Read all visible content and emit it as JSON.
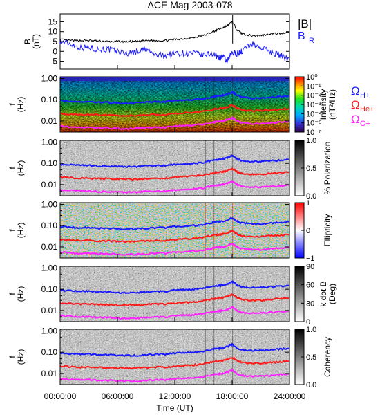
{
  "title": "ACE Mag 2003-078",
  "xlabel": "Time (UT)",
  "x_ticks": [
    "00:00:00",
    "06:00:00",
    "12:00:00",
    "18:00:00",
    "24:00:00"
  ],
  "x_tick_hours": [
    0,
    6,
    12,
    18,
    24
  ],
  "x_range_hours": [
    0,
    24
  ],
  "colors": {
    "total": "#000000",
    "radial": "#1a1aff",
    "h": "#1a1aff",
    "he": "#ff1a1a",
    "o": "#ff20ff"
  },
  "chart_data": [
    {
      "type": "line",
      "ylabel": [
        "B",
        "(nT)"
      ],
      "ylim": [
        -9,
        19
      ],
      "y_ticks": [
        "15",
        "10",
        "5",
        "0",
        "-5"
      ],
      "y_tick_values": [
        15,
        10,
        5,
        0,
        -5
      ],
      "legend": {
        "position": "right",
        "entries": [
          "|B|",
          "B"
        ],
        "subscripts": [
          "",
          "R"
        ]
      },
      "series": [
        {
          "name": "|B|",
          "x": [
            0,
            1,
            2,
            3,
            4,
            5,
            6,
            7,
            8,
            9,
            10,
            11,
            12,
            13,
            14,
            15,
            16,
            16.5,
            17,
            17.5,
            18,
            18.5,
            19,
            20,
            21,
            22,
            23,
            24
          ],
          "values": [
            6,
            5.5,
            5.5,
            5.5,
            5.2,
            5,
            5,
            5,
            5,
            5.5,
            5.5,
            5.5,
            6,
            6.5,
            7,
            8,
            10,
            11,
            12,
            13,
            15,
            11,
            9,
            8,
            8,
            9,
            9,
            10
          ]
        },
        {
          "name": "B_R",
          "x": [
            0,
            1,
            2,
            3,
            4,
            5,
            6,
            7,
            8,
            9,
            10,
            11,
            12,
            13,
            14,
            15,
            16,
            16.5,
            17,
            17.5,
            18,
            18.5,
            19,
            20,
            21,
            22,
            23,
            24
          ],
          "values": [
            5,
            4,
            2,
            2,
            1,
            1,
            0,
            -1,
            0,
            1,
            -2,
            -2,
            -1,
            -1,
            -1,
            -2,
            -1,
            -3,
            -3,
            -5,
            -1,
            -1,
            0,
            4,
            2,
            0,
            -2,
            -4
          ]
        }
      ]
    },
    {
      "type": "heatmap",
      "ylabel": [
        "f",
        "(Hz)"
      ],
      "y_scale": "log",
      "ylim": [
        0.003,
        1.2
      ],
      "y_ticks": [
        "1.00",
        "0.10",
        "0.01"
      ],
      "y_tick_values": [
        1,
        0.1,
        0.01
      ],
      "colorbar": {
        "label": [
          "Intensity",
          "(nT²/Hz)"
        ],
        "scale": "rainbow",
        "ticks": [
          "10⁰",
          "10⁻¹",
          "10⁻²",
          "10⁻³",
          "10⁻⁴",
          "10⁻⁵",
          "10⁻⁶"
        ],
        "range": [
          -6,
          0
        ]
      },
      "legend": {
        "position": "right",
        "entries": [
          "Ω",
          "Ω",
          "Ω"
        ],
        "subscripts": [
          "H+",
          "He+",
          "O+"
        ]
      }
    },
    {
      "type": "heatmap",
      "ylabel": [
        "f",
        "(Hz)"
      ],
      "y_scale": "log",
      "ylim": [
        0.003,
        1.2
      ],
      "y_ticks": [
        "1.00",
        "0.10",
        "0.01"
      ],
      "y_tick_values": [
        1,
        0.1,
        0.01
      ],
      "colorbar": {
        "label": [
          "% Polarization"
        ],
        "scale": "gray",
        "ticks": [
          "1.0",
          "0.5",
          "0.0"
        ],
        "range": [
          0,
          1
        ]
      }
    },
    {
      "type": "heatmap",
      "ylabel": [
        "f",
        "(Hz)"
      ],
      "y_scale": "log",
      "ylim": [
        0.003,
        1.2
      ],
      "y_ticks": [
        "1.00",
        "0.10",
        "0.01"
      ],
      "y_tick_values": [
        1,
        0.1,
        0.01
      ],
      "colorbar": {
        "label": [
          "Ellipticity"
        ],
        "scale": "diverging",
        "ticks": [
          "1",
          "0",
          "−1"
        ],
        "range": [
          -1,
          1
        ]
      }
    },
    {
      "type": "heatmap",
      "ylabel": [
        "f",
        "(Hz)"
      ],
      "y_scale": "log",
      "ylim": [
        0.003,
        1.2
      ],
      "y_ticks": [
        "1.00",
        "0.10",
        "0.01"
      ],
      "y_tick_values": [
        1,
        0.1,
        0.01
      ],
      "colorbar": {
        "label": [
          "k dot B",
          "(Deg)"
        ],
        "scale": "gray",
        "ticks": [
          "90",
          "60",
          "30",
          "0"
        ],
        "range": [
          0,
          90
        ]
      }
    },
    {
      "type": "heatmap",
      "ylabel": [
        "f",
        "(Hz)"
      ],
      "y_scale": "log",
      "ylim": [
        0.003,
        1.2
      ],
      "y_ticks": [
        "1.00",
        "0.10",
        "0.01"
      ],
      "y_tick_values": [
        1,
        0.1,
        0.01
      ],
      "colorbar": {
        "label": [
          "Coherency"
        ],
        "scale": "gray",
        "ticks": [
          "1.0",
          "0.5",
          "0.0"
        ],
        "range": [
          0,
          1
        ]
      }
    }
  ],
  "gyro_lines": {
    "x": [
      0,
      1,
      2,
      3,
      4,
      5,
      6,
      7,
      8,
      9,
      10,
      11,
      12,
      13,
      14,
      15,
      16,
      16.5,
      17,
      17.5,
      18,
      18.5,
      19,
      20,
      21,
      22,
      23,
      24
    ],
    "H+": [
      0.09,
      0.085,
      0.08,
      0.08,
      0.075,
      0.075,
      0.07,
      0.07,
      0.07,
      0.075,
      0.08,
      0.08,
      0.09,
      0.095,
      0.1,
      0.11,
      0.14,
      0.15,
      0.16,
      0.18,
      0.23,
      0.16,
      0.13,
      0.12,
      0.12,
      0.13,
      0.14,
      0.15
    ],
    "He+": [
      0.022,
      0.021,
      0.02,
      0.02,
      0.019,
      0.019,
      0.018,
      0.018,
      0.018,
      0.019,
      0.02,
      0.02,
      0.022,
      0.024,
      0.025,
      0.028,
      0.035,
      0.038,
      0.04,
      0.045,
      0.057,
      0.04,
      0.033,
      0.03,
      0.03,
      0.033,
      0.035,
      0.038
    ],
    "O+": [
      0.0056,
      0.0053,
      0.005,
      0.005,
      0.0047,
      0.0047,
      0.0044,
      0.0044,
      0.0044,
      0.0047,
      0.005,
      0.005,
      0.0056,
      0.006,
      0.0063,
      0.007,
      0.0088,
      0.0094,
      0.01,
      0.0113,
      0.0143,
      0.01,
      0.0081,
      0.0075,
      0.0075,
      0.0081,
      0.0088,
      0.0094
    ]
  }
}
